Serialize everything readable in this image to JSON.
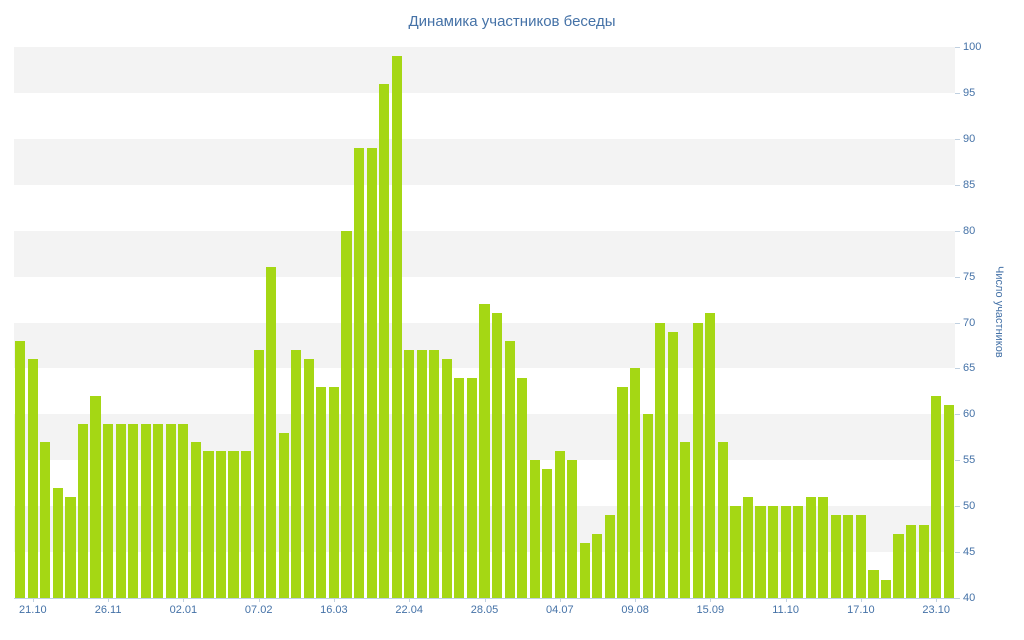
{
  "chart": {
    "title": "Динамика участников беседы"
  },
  "colors": {
    "bar": "#a5d714",
    "band": "#f3f3f3",
    "axis_text": "#4572a7",
    "axis_line": "#c0d0e0",
    "background": "#ffffff"
  },
  "chart_data": {
    "type": "bar",
    "title": "Динамика участников беседы",
    "xlabel": "",
    "ylabel": "Число участников",
    "ylim": [
      40,
      100
    ],
    "ytick_step": 5,
    "ytick_labels": [
      40,
      45,
      50,
      55,
      60,
      65,
      70,
      75,
      80,
      85,
      90,
      95,
      100
    ],
    "grid": "alternating-horizontal-bands",
    "legend": "none",
    "x_tick_labels": [
      "21.10",
      "26.11",
      "02.01",
      "07.02",
      "16.03",
      "22.04",
      "28.05",
      "04.07",
      "09.08",
      "15.09",
      "11.10",
      "17.10",
      "23.10"
    ],
    "x_tick_first_index": 1,
    "x_tick_every": 6,
    "values": [
      68,
      66,
      57,
      52,
      51,
      59,
      62,
      59,
      59,
      59,
      59,
      59,
      59,
      59,
      57,
      56,
      56,
      56,
      56,
      67,
      76,
      58,
      67,
      66,
      63,
      63,
      80,
      89,
      89,
      96,
      99,
      67,
      67,
      67,
      66,
      64,
      64,
      72,
      71,
      68,
      64,
      55,
      54,
      56,
      55,
      46,
      47,
      49,
      63,
      65,
      60,
      70,
      69,
      57,
      70,
      71,
      57,
      50,
      51,
      50,
      50,
      50,
      50,
      51,
      51,
      49,
      49,
      49,
      43,
      42,
      47,
      48,
      48,
      62,
      61
    ]
  }
}
